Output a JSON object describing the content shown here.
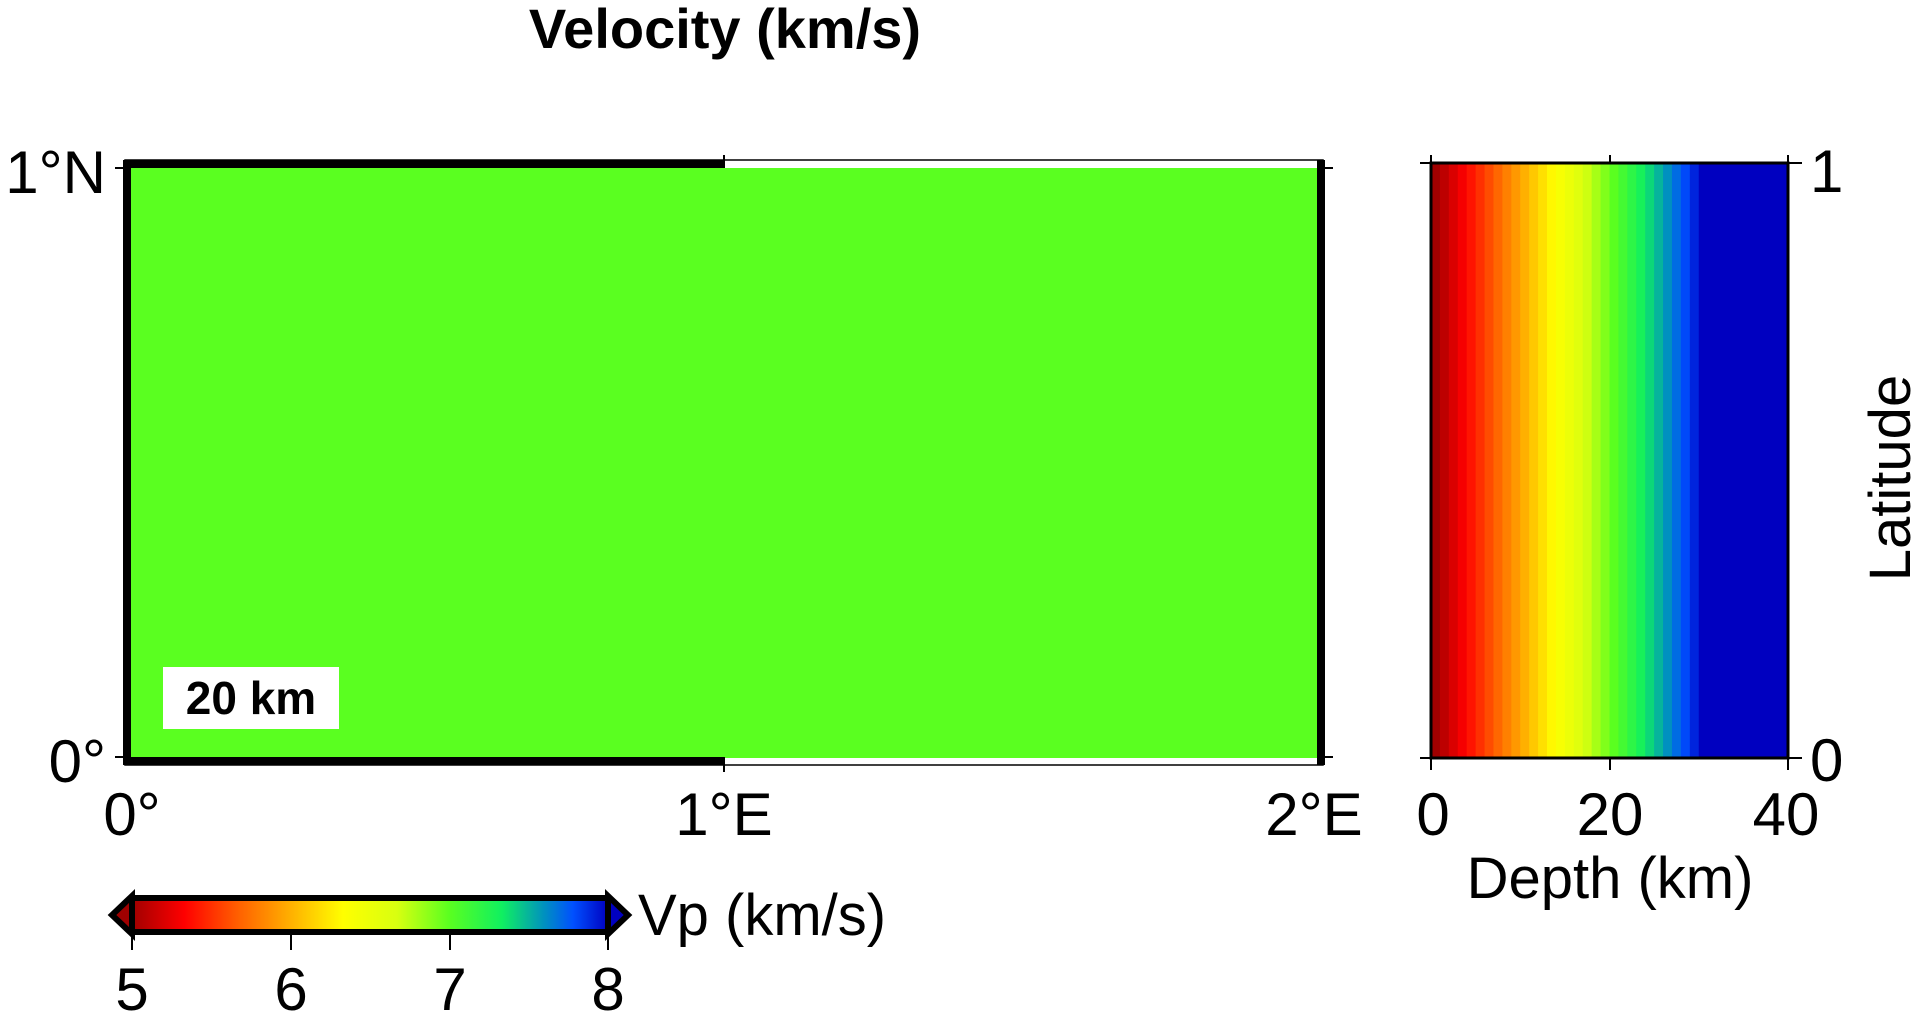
{
  "chart_data": [
    {
      "type": "heatmap",
      "title": "Velocity (km/s)",
      "panel": "map-slice",
      "depth_label": "20 km",
      "x_ticks": [
        "0°",
        "1°E",
        "2°E"
      ],
      "y_ticks": [
        "0°",
        "1°N"
      ],
      "xlim": [
        0,
        2
      ],
      "ylim": [
        0,
        1
      ],
      "uniform_value": 7.0,
      "fill_color": "#5aff20"
    },
    {
      "type": "heatmap",
      "panel": "depth-section",
      "xlabel": "Depth (km)",
      "ylabel": "Latitude",
      "x_ticks": [
        "0",
        "20",
        "40"
      ],
      "y_ticks": [
        "0",
        "1"
      ],
      "xlim": [
        0,
        40
      ],
      "ylim": [
        0,
        1
      ],
      "depth_km": [
        0,
        1,
        2,
        3,
        4,
        5,
        6,
        7,
        8,
        9,
        10,
        11,
        12,
        13,
        14,
        15,
        16,
        17,
        18,
        19,
        20,
        21,
        22,
        23,
        24,
        25,
        26,
        27,
        28,
        29,
        30,
        31,
        32,
        33,
        34,
        35,
        36,
        37,
        38,
        39
      ],
      "vp": [
        5.0,
        5.1,
        5.2,
        5.3,
        5.4,
        5.5,
        5.6,
        5.7,
        5.8,
        5.9,
        6.0,
        6.1,
        6.2,
        6.3,
        6.4,
        6.5,
        6.6,
        6.7,
        6.8,
        6.9,
        7.0,
        7.1,
        7.2,
        7.3,
        7.4,
        7.5,
        7.6,
        7.7,
        7.8,
        7.9,
        8.0,
        8.0,
        8.0,
        8.0,
        8.0,
        8.0,
        8.0,
        8.0,
        8.0,
        8.0
      ]
    }
  ],
  "colorbar": {
    "label": "Vp (km/s)",
    "ticks": [
      "5",
      "6",
      "7",
      "8"
    ],
    "range": [
      5,
      8
    ],
    "stops": [
      {
        "v": 5.0,
        "c": "#a00000"
      },
      {
        "v": 5.33,
        "c": "#ff0000"
      },
      {
        "v": 5.67,
        "c": "#ff6000"
      },
      {
        "v": 6.0,
        "c": "#ffb000"
      },
      {
        "v": 6.33,
        "c": "#ffff00"
      },
      {
        "v": 6.67,
        "c": "#d8ff10"
      },
      {
        "v": 7.0,
        "c": "#5aff20"
      },
      {
        "v": 7.33,
        "c": "#10f060"
      },
      {
        "v": 7.6,
        "c": "#0090c0"
      },
      {
        "v": 7.78,
        "c": "#0050ff"
      },
      {
        "v": 8.0,
        "c": "#0000c0"
      }
    ]
  }
}
